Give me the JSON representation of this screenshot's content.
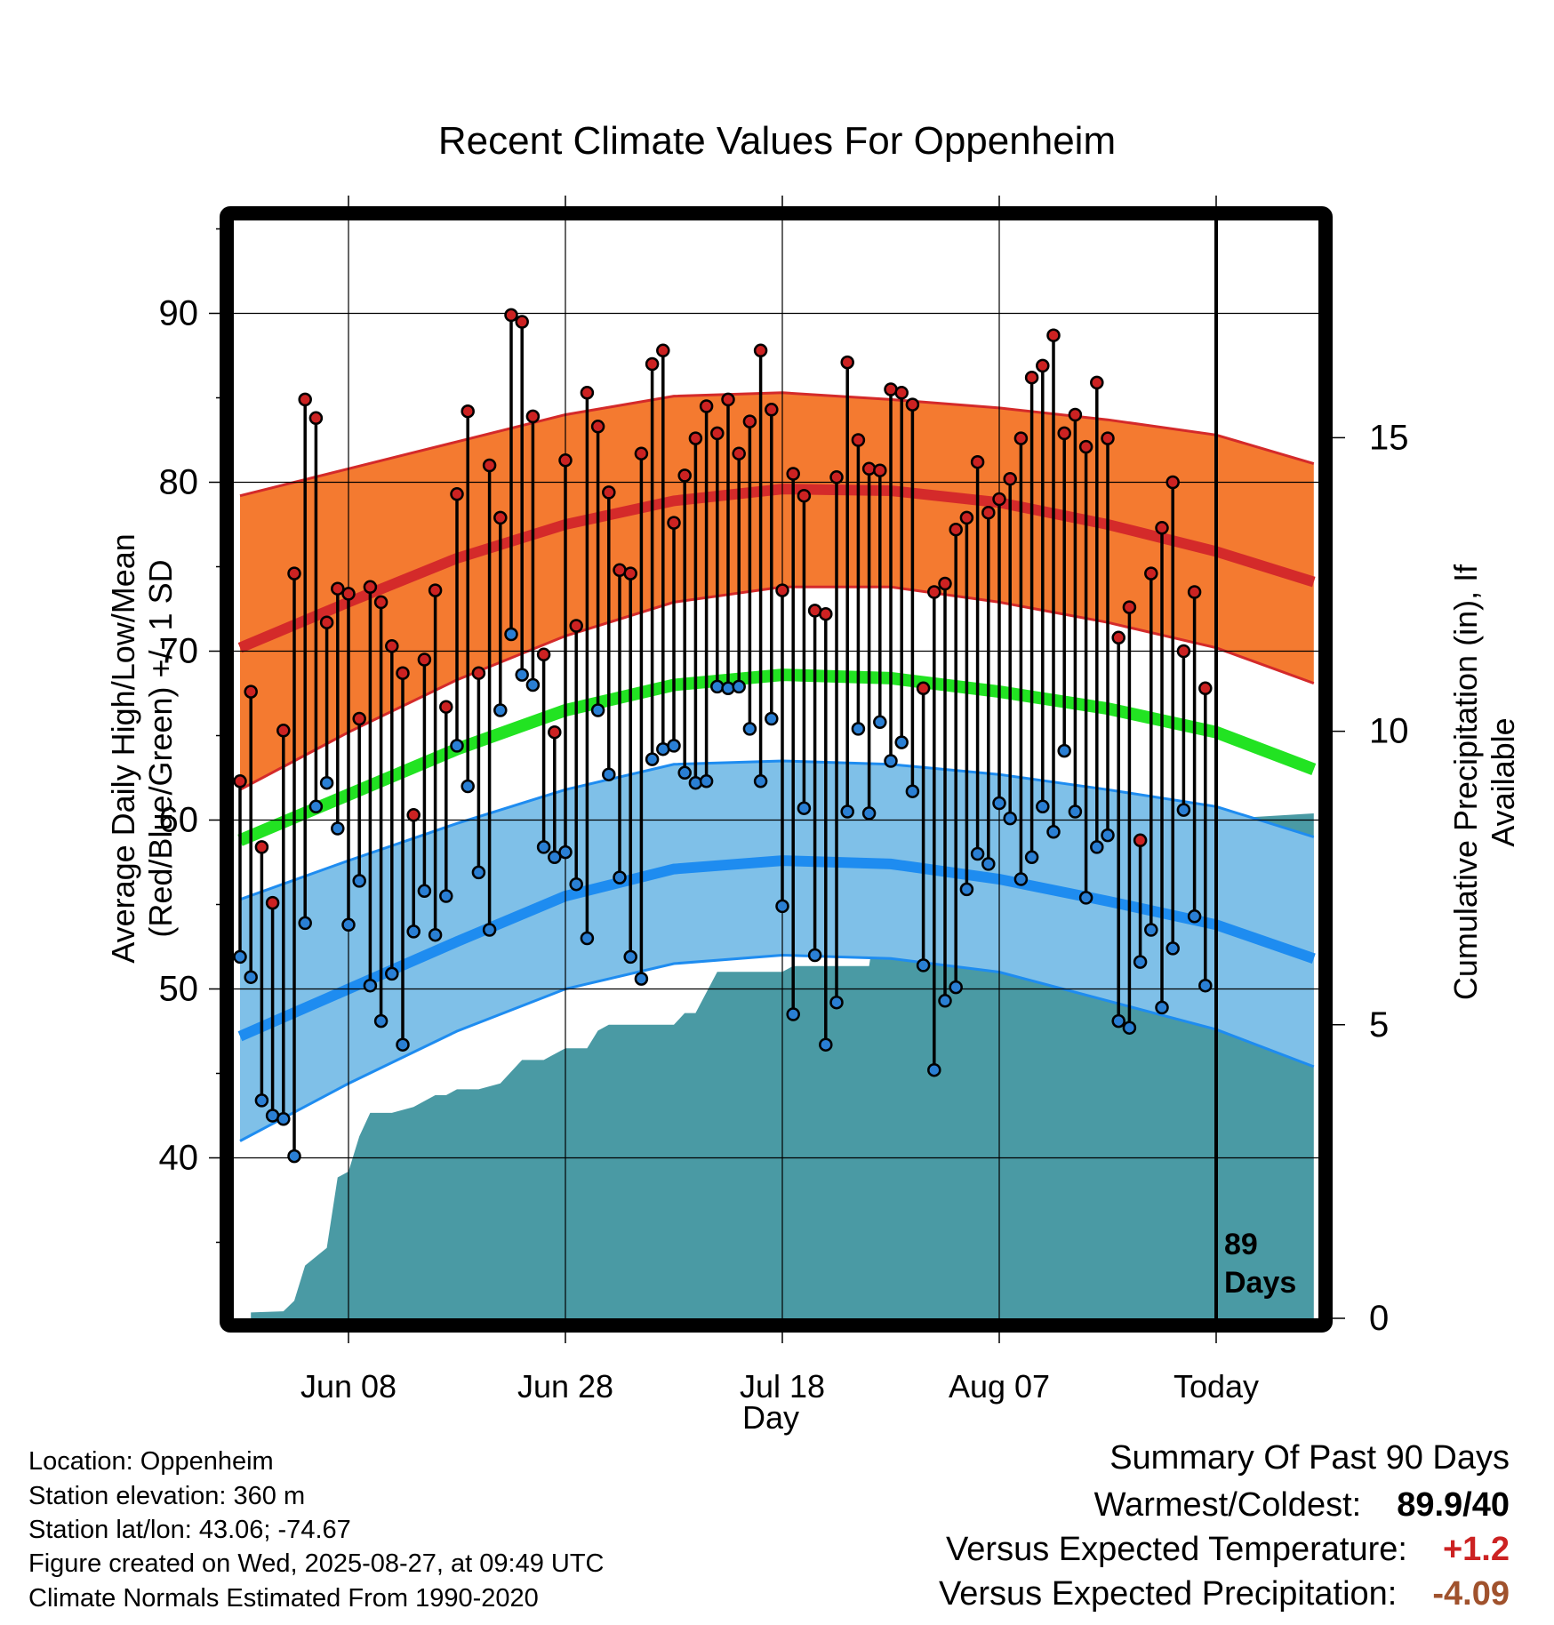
{
  "title": "Recent Climate Values For Oppenheim",
  "xlabel": "Day",
  "ylabel": "Average Daily High/Low/Mean (Red/Blue/Green) +/- 1 SD",
  "y2label": "Cumulative Precipitation (in), If Available",
  "today_marker": {
    "line1": "89",
    "line2": "Days"
  },
  "metadata": {
    "location": "Location: Oppenheim",
    "elevation": "Station elevation: 360 m",
    "latlon": "Station lat/lon: 43.06; -74.67",
    "created": "Figure created on Wed, 2025-08-27, at 09:49 UTC",
    "normals": "Climate Normals Estimated From 1990-2020"
  },
  "summary": {
    "heading": "Summary Of Past 90 Days",
    "warm_cold_label": "Warmest/Coldest:",
    "warm_cold_value": "89.9/40",
    "temp_label": "Versus Expected Temperature:",
    "temp_value": "+1.2",
    "precip_label": "Versus Expected Precipitation:",
    "precip_value": "-4.09"
  },
  "colors": {
    "high_band": "#f47a30",
    "high_mean": "#d42a2a",
    "low_band": "#7fc0e8",
    "low_mean": "#1e8cf0",
    "mean_line": "#22e322",
    "precip": "#4a9aa4",
    "high_point": "#cc2222",
    "low_point": "#2a7fd4",
    "temp_value": "#cc2222",
    "precip_value": "#a0522d"
  },
  "chart_data": {
    "type": "line",
    "xlim": [
      -11,
      89
    ],
    "ylim": [
      30.5,
      95.5
    ],
    "y2lim": [
      0,
      18.7
    ],
    "x_ticks": [
      {
        "x": 0,
        "label": "Jun 08"
      },
      {
        "x": 20,
        "label": "Jun 28"
      },
      {
        "x": 40,
        "label": "Jul 18"
      },
      {
        "x": 60,
        "label": "Aug 07"
      },
      {
        "x": 80,
        "label": "Today"
      }
    ],
    "y_ticks": [
      40,
      50,
      60,
      70,
      80,
      90
    ],
    "y2_ticks": [
      0,
      5,
      10,
      15
    ],
    "today_x": 80,
    "normal_days": [
      -10,
      0,
      10,
      20,
      30,
      40,
      50,
      60,
      70,
      80,
      89
    ],
    "normal_high": [
      70.2,
      72.9,
      75.5,
      77.5,
      78.9,
      79.6,
      79.5,
      78.8,
      77.5,
      75.9,
      74.1
    ],
    "normal_high_upper": [
      79.2,
      80.8,
      82.4,
      84.0,
      85.1,
      85.3,
      84.9,
      84.4,
      83.7,
      82.8,
      81.1
    ],
    "normal_high_lower": [
      61.8,
      65.2,
      68.3,
      70.9,
      72.9,
      73.8,
      73.8,
      72.9,
      71.7,
      70.2,
      68.1
    ],
    "normal_mean": [
      58.8,
      61.5,
      64.2,
      66.5,
      68.0,
      68.6,
      68.4,
      67.6,
      66.6,
      65.2,
      63.0
    ],
    "normal_low": [
      47.2,
      50.0,
      52.8,
      55.5,
      57.1,
      57.6,
      57.4,
      56.5,
      55.2,
      53.8,
      51.8
    ],
    "normal_low_upper": [
      55.3,
      57.6,
      59.8,
      61.8,
      63.3,
      63.5,
      63.3,
      62.7,
      61.8,
      60.8,
      59.0
    ],
    "normal_low_lower": [
      41.0,
      44.4,
      47.5,
      50.0,
      51.5,
      52.0,
      51.8,
      51.0,
      49.3,
      47.6,
      45.4
    ],
    "obs_days": [
      -10,
      -9,
      -8,
      -7,
      -6,
      -5,
      -4,
      -3,
      -2,
      -1,
      0,
      1,
      2,
      3,
      4,
      5,
      6,
      7,
      8,
      9,
      10,
      11,
      12,
      13,
      14,
      15,
      16,
      17,
      18,
      19,
      20,
      21,
      22,
      23,
      24,
      25,
      26,
      27,
      28,
      29,
      30,
      31,
      32,
      33,
      34,
      35,
      36,
      37,
      38,
      39,
      40,
      41,
      42,
      43,
      44,
      45,
      46,
      47,
      48,
      49,
      50,
      51,
      52,
      53,
      54,
      55,
      56,
      57,
      58,
      59,
      60,
      61,
      62,
      63,
      64,
      65,
      66,
      67,
      68,
      69,
      70,
      71,
      72,
      73,
      74,
      75,
      76,
      77,
      78,
      79
    ],
    "obs_high": [
      62.3,
      67.6,
      58.4,
      55.1,
      65.3,
      74.6,
      84.9,
      83.8,
      71.7,
      73.7,
      73.4,
      66.0,
      73.8,
      72.9,
      70.3,
      68.7,
      60.3,
      69.5,
      73.6,
      66.7,
      79.3,
      84.2,
      68.7,
      81.0,
      77.9,
      89.9,
      89.5,
      83.9,
      69.8,
      65.2,
      81.3,
      71.5,
      85.3,
      83.3,
      79.4,
      74.8,
      74.6,
      81.7,
      87.0,
      87.8,
      77.6,
      80.4,
      82.6,
      84.5,
      82.9,
      84.9,
      81.7,
      83.6,
      87.8,
      84.3,
      73.6,
      80.5,
      79.2,
      72.4,
      72.2,
      80.3,
      87.1,
      82.5,
      80.8,
      80.7,
      85.5,
      85.3,
      84.6,
      67.8,
      73.5,
      74.0,
      77.2,
      77.9,
      81.2,
      78.2,
      79.0,
      80.2,
      82.6,
      86.2,
      86.9,
      88.7,
      82.9,
      84.0,
      82.1,
      85.9,
      82.6,
      70.8,
      72.6,
      58.8,
      74.6,
      77.3,
      80.0,
      70.0,
      73.5,
      67.8
    ],
    "obs_low": [
      51.9,
      50.7,
      43.4,
      42.5,
      42.3,
      40.1,
      53.9,
      60.8,
      62.2,
      59.5,
      53.8,
      56.4,
      50.2,
      48.1,
      50.9,
      46.7,
      53.4,
      55.8,
      53.2,
      55.5,
      64.4,
      62.0,
      56.9,
      53.5,
      66.5,
      71.0,
      68.6,
      68.0,
      58.4,
      57.8,
      58.1,
      56.2,
      53.0,
      66.5,
      62.7,
      56.6,
      51.9,
      50.6,
      63.6,
      64.2,
      64.4,
      62.8,
      62.2,
      62.3,
      67.9,
      67.8,
      67.9,
      65.4,
      62.3,
      66.0,
      54.9,
      48.5,
      60.7,
      52.0,
      46.7,
      49.2,
      60.5,
      65.4,
      60.4,
      65.8,
      63.5,
      64.6,
      61.7,
      51.4,
      45.2,
      49.3,
      50.1,
      55.9,
      58.0,
      57.4,
      61.0,
      60.1,
      56.5,
      57.8,
      60.8,
      59.3,
      64.1,
      60.5,
      55.4,
      58.4,
      59.1,
      48.1,
      47.7,
      51.6,
      53.5,
      48.9,
      52.4,
      60.6,
      54.3,
      50.2
    ],
    "precip_days": [
      -9,
      -6,
      -5,
      -4,
      -2,
      -1,
      0,
      1,
      2,
      4,
      6,
      7,
      8,
      9,
      10,
      12,
      14,
      16,
      18,
      19,
      20,
      22,
      23,
      24,
      28,
      30,
      31,
      32,
      34,
      40,
      41,
      43,
      44,
      48,
      49,
      50,
      52,
      53,
      56,
      57,
      60,
      62,
      64,
      68,
      70,
      72,
      74,
      75,
      76,
      80,
      89
    ],
    "precip_cum": [
      0.1,
      0.12,
      0.3,
      0.9,
      1.2,
      2.4,
      2.5,
      3.1,
      3.5,
      3.5,
      3.6,
      3.7,
      3.8,
      3.8,
      3.9,
      3.9,
      4.0,
      4.4,
      4.4,
      4.5,
      4.6,
      4.6,
      4.9,
      5.0,
      5.0,
      5.0,
      5.2,
      5.2,
      5.9,
      5.9,
      6.0,
      6.0,
      6.0,
      6.0,
      7.2,
      7.2,
      7.6,
      7.8,
      7.8,
      8.0,
      8.0,
      8.05,
      8.1,
      8.1,
      8.2,
      8.2,
      8.3,
      8.5,
      8.5,
      8.5,
      8.6
    ]
  }
}
